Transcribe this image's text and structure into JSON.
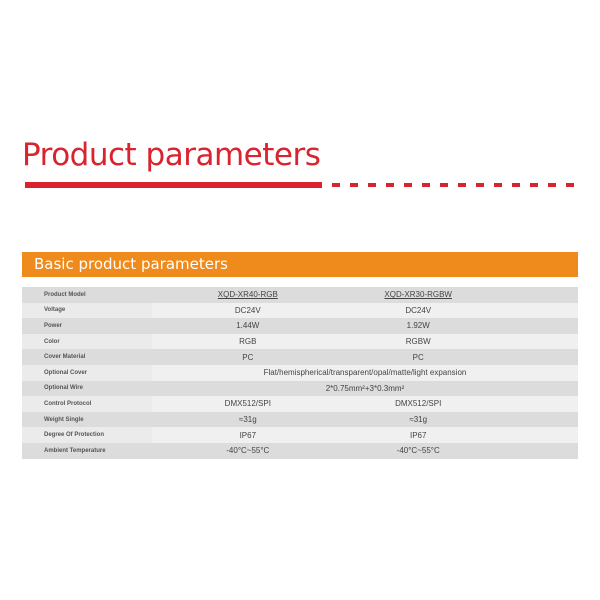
{
  "title": "Product parameters",
  "section": "Basic product parameters",
  "colors": {
    "title": "#d9232e",
    "section": "#ef8a1c"
  },
  "rows": [
    {
      "label": "Product Model",
      "a": "XQD-XR40-RGB",
      "b": "XQD-XR30-RGBW"
    },
    {
      "label": "Voltage",
      "a": "DC24V",
      "b": "DC24V"
    },
    {
      "label": "Power",
      "a": "1.44W",
      "b": "1.92W"
    },
    {
      "label": "Color",
      "a": "RGB",
      "b": "RGBW"
    },
    {
      "label": "Cover Material",
      "a": "PC",
      "b": "PC"
    },
    {
      "label": "Optional Cover",
      "merged": "Flat/hemispherical/transparent/opal/matte/light expansion"
    },
    {
      "label": "Optional Wire",
      "merged": "2*0.75mm²+3*0.3mm²"
    },
    {
      "label": "Control Protocol",
      "a": "DMX512/SPI",
      "b": "DMX512/SPI"
    },
    {
      "label": "Weight Single",
      "a": "≈31g",
      "b": "≈31g"
    },
    {
      "label": "Degree Of Protection",
      "a": "IP67",
      "b": "IP67"
    },
    {
      "label": "Ambient Temperature",
      "a": "-40°C~55°C",
      "b": "-40°C~55°C"
    }
  ]
}
